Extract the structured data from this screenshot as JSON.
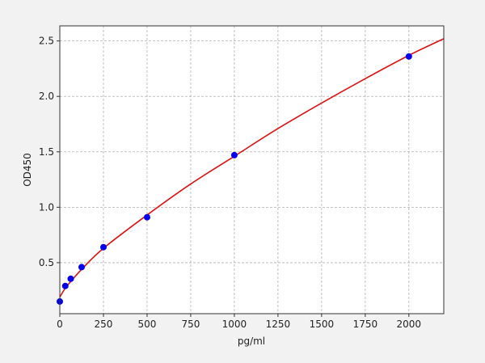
{
  "chart_data": {
    "type": "scatter",
    "title": "",
    "xlabel": "pg/ml",
    "ylabel": "OD450",
    "xlim": [
      0,
      2200
    ],
    "ylim": [
      0.04,
      2.636
    ],
    "xticks": [
      0,
      250,
      500,
      750,
      1000,
      1250,
      1500,
      1750,
      2000
    ],
    "yticks": [
      0.5,
      1.0,
      1.5,
      2.0,
      2.5
    ],
    "ytick_labels": [
      "0.5",
      "1.0",
      "1.5",
      "2.0",
      "2.5"
    ],
    "grid": true,
    "series": [
      {
        "type": "scatter",
        "color": "#0000ee",
        "x": [
          0,
          31.25,
          62.5,
          125,
          250,
          500,
          1000,
          2000
        ],
        "y": [
          0.15,
          0.29,
          0.355,
          0.46,
          0.64,
          0.91,
          1.47,
          2.36
        ]
      },
      {
        "type": "line",
        "color": "#dd1111",
        "x": [
          0,
          31.25,
          62.5,
          125,
          250,
          500,
          750,
          1000,
          1250,
          1500,
          1750,
          2000,
          2200
        ],
        "y": [
          0.19,
          0.27,
          0.33,
          0.44,
          0.63,
          0.93,
          1.21,
          1.46,
          1.71,
          1.94,
          2.16,
          2.37,
          2.52
        ]
      }
    ]
  }
}
